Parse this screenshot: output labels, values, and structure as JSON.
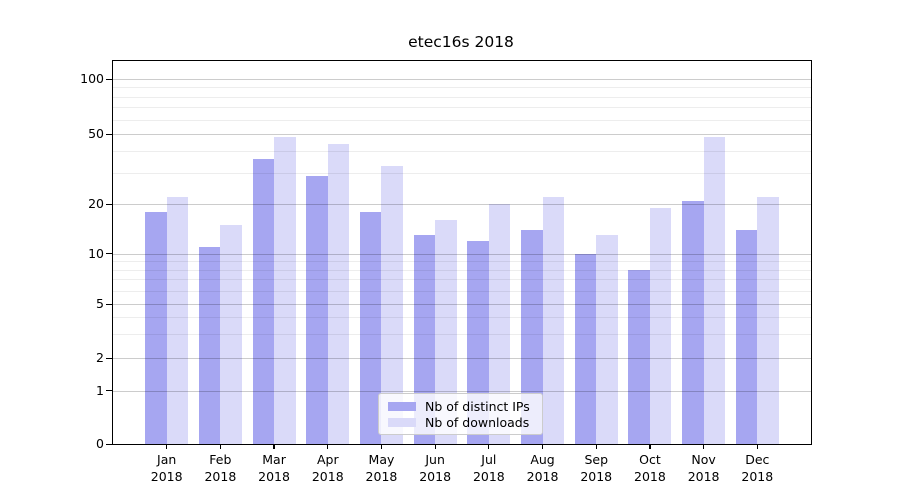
{
  "chart_data": {
    "type": "bar",
    "title": "etec16s 2018",
    "months": [
      "Jan",
      "Feb",
      "Mar",
      "Apr",
      "May",
      "Jun",
      "Jul",
      "Aug",
      "Sep",
      "Oct",
      "Nov",
      "Dec"
    ],
    "year": "2018",
    "categories": [
      "Jan 2018",
      "Feb 2018",
      "Mar 2018",
      "Apr 2018",
      "May 2018",
      "Jun 2018",
      "Jul 2018",
      "Aug 2018",
      "Sep 2018",
      "Oct 2018",
      "Nov 2018",
      "Dec 2018"
    ],
    "series": [
      {
        "name": "Nb of distinct IPs",
        "color": "#a6a6f1",
        "values": [
          18,
          11,
          36,
          29,
          18,
          13,
          12,
          14,
          10,
          8,
          21,
          14
        ]
      },
      {
        "name": "Nb of downloads",
        "color": "#dadaf9",
        "values": [
          22,
          15,
          48,
          44,
          33,
          16,
          20,
          22,
          13,
          19,
          48,
          22
        ]
      }
    ],
    "yscale": "symlog",
    "yticks": [
      0,
      1,
      2,
      5,
      10,
      20,
      50,
      100
    ],
    "minor_yticks": [
      3,
      4,
      6,
      7,
      8,
      9,
      30,
      40,
      60,
      70,
      80,
      90
    ],
    "ylim": [
      0,
      125
    ],
    "xlabel": "",
    "ylabel": "",
    "grid": true,
    "legend": {
      "position": "lower center"
    }
  },
  "colors": {
    "background": "#ffffff",
    "bar_ips": "#a6a6f1",
    "bar_downloads": "#dadaf9",
    "grid_major": "rgba(0,0,0,0.20)",
    "grid_minor": "rgba(0,0,0,0.07)",
    "spine": "#000000",
    "text": "#000000",
    "legend_border": "#cccccc"
  }
}
